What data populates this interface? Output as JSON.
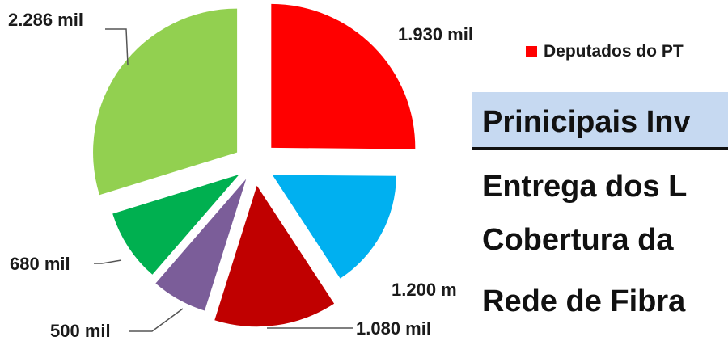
{
  "chart_data": {
    "type": "pie",
    "title": "",
    "slices": [
      {
        "label": "1.930 mil",
        "value": 1930,
        "color": "#ff0000"
      },
      {
        "label": "1.200 m",
        "value": 1200,
        "color": "#00b0f0"
      },
      {
        "label": "1.080 mil",
        "value": 1080,
        "color": "#c00000"
      },
      {
        "label": "500 mil",
        "value": 500,
        "color": "#7b5d99"
      },
      {
        "label": "680 mil",
        "value": 680,
        "color": "#00b050"
      },
      {
        "label": "2.286 mil",
        "value": 2286,
        "color": "#92d050"
      }
    ],
    "legend": [
      {
        "label": "Deputados do PT",
        "color": "#ff0000"
      }
    ],
    "legend_placement": "top-right"
  },
  "panel": {
    "heading": "Prinicipais Inv",
    "items": [
      "Entrega dos L",
      "Cobertura da",
      "Rede de Fibra"
    ]
  }
}
